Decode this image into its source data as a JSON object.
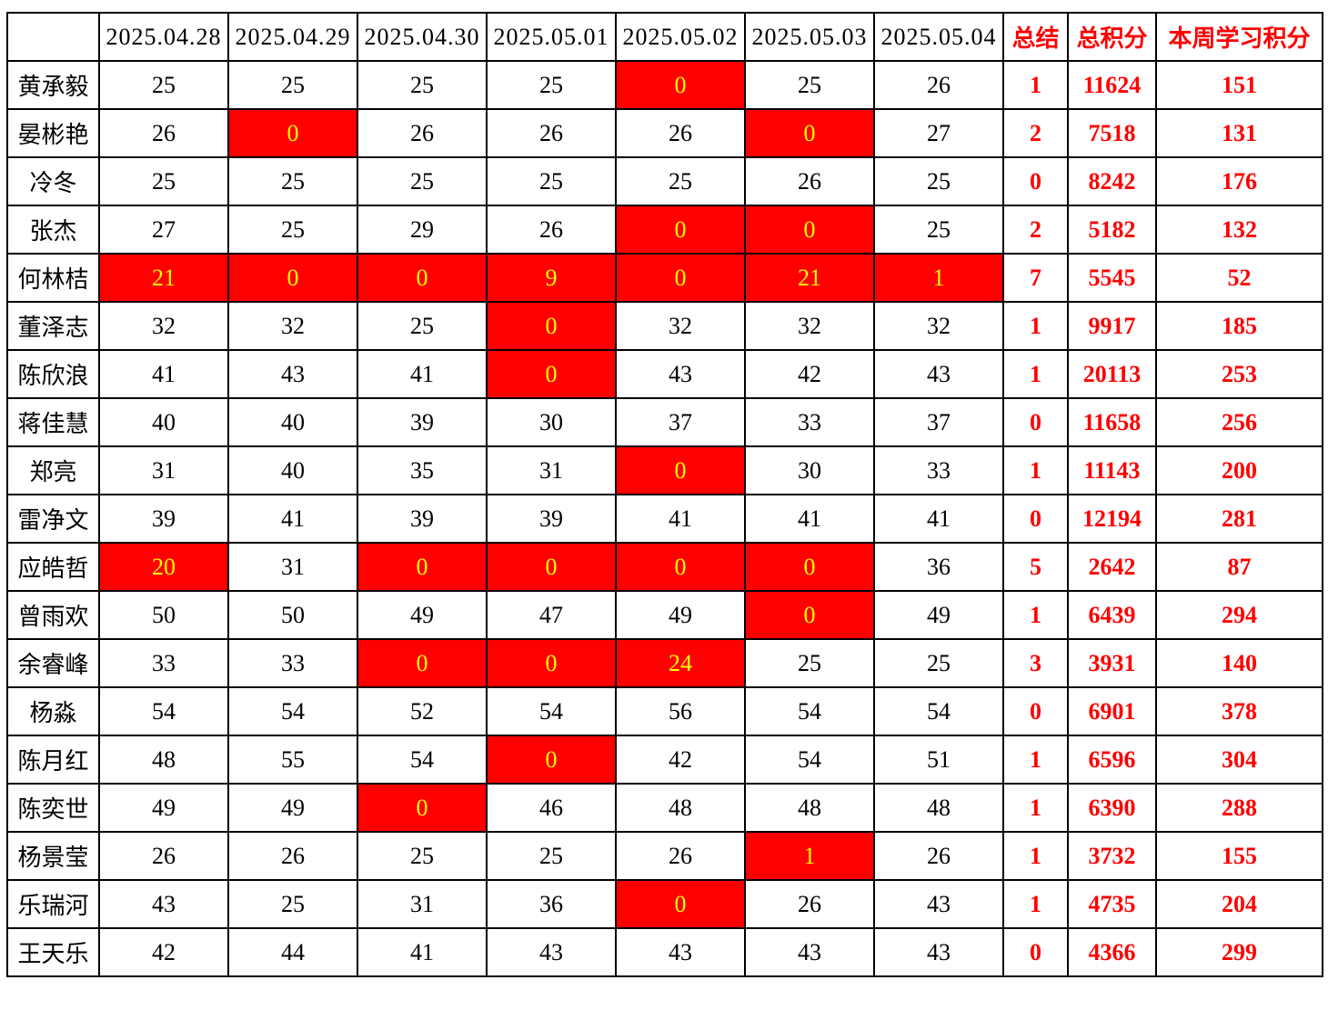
{
  "colors": {
    "highlight_bg": "#FF0000",
    "highlight_text": "#FFFF00",
    "accent_text": "#FF0000",
    "normal_text": "#000000",
    "border": "#000000",
    "background": "#FFFFFF"
  },
  "table": {
    "header": {
      "name_col": "",
      "date_cols": [
        "2025.04.28",
        "2025.04.29",
        "2025.04.30",
        "2025.05.01",
        "2025.05.02",
        "2025.05.03",
        "2025.05.04"
      ],
      "summary_cols": [
        "总结",
        "总积分",
        "本周学习积分"
      ]
    },
    "rows": [
      {
        "name": "黄承毅",
        "scores": [
          25,
          25,
          25,
          25,
          0,
          25,
          26
        ],
        "highlight": [
          4
        ],
        "summary": "1",
        "total": "11624",
        "week": "151"
      },
      {
        "name": "晏彬艳",
        "scores": [
          26,
          0,
          26,
          26,
          26,
          0,
          27
        ],
        "highlight": [
          1,
          5
        ],
        "summary": "2",
        "total": "7518",
        "week": "131"
      },
      {
        "name": "冷冬",
        "scores": [
          25,
          25,
          25,
          25,
          25,
          26,
          25
        ],
        "highlight": [],
        "summary": "0",
        "total": "8242",
        "week": "176"
      },
      {
        "name": "张杰",
        "scores": [
          27,
          25,
          29,
          26,
          0,
          0,
          25
        ],
        "highlight": [
          4,
          5
        ],
        "summary": "2",
        "total": "5182",
        "week": "132"
      },
      {
        "name": "何林桔",
        "scores": [
          21,
          0,
          0,
          9,
          0,
          21,
          1
        ],
        "highlight": [
          0,
          1,
          2,
          3,
          4,
          5,
          6
        ],
        "summary": "7",
        "total": "5545",
        "week": "52"
      },
      {
        "name": "董泽志",
        "scores": [
          32,
          32,
          25,
          0,
          32,
          32,
          32
        ],
        "highlight": [
          3
        ],
        "summary": "1",
        "total": "9917",
        "week": "185"
      },
      {
        "name": "陈欣浪",
        "scores": [
          41,
          43,
          41,
          0,
          43,
          42,
          43
        ],
        "highlight": [
          3
        ],
        "summary": "1",
        "total": "20113",
        "week": "253"
      },
      {
        "name": "蒋佳慧",
        "scores": [
          40,
          40,
          39,
          30,
          37,
          33,
          37
        ],
        "highlight": [],
        "summary": "0",
        "total": "11658",
        "week": "256"
      },
      {
        "name": "郑亮",
        "scores": [
          31,
          40,
          35,
          31,
          0,
          30,
          33
        ],
        "highlight": [
          4
        ],
        "summary": "1",
        "total": "11143",
        "week": "200"
      },
      {
        "name": "雷净文",
        "scores": [
          39,
          41,
          39,
          39,
          41,
          41,
          41
        ],
        "highlight": [],
        "summary": "0",
        "total": "12194",
        "week": "281"
      },
      {
        "name": "应皓哲",
        "scores": [
          20,
          31,
          0,
          0,
          0,
          0,
          36
        ],
        "highlight": [
          0,
          2,
          3,
          4,
          5
        ],
        "summary": "5",
        "total": "2642",
        "week": "87"
      },
      {
        "name": "曾雨欢",
        "scores": [
          50,
          50,
          49,
          47,
          49,
          0,
          49
        ],
        "highlight": [
          5
        ],
        "summary": "1",
        "total": "6439",
        "week": "294"
      },
      {
        "name": "余睿峰",
        "scores": [
          33,
          33,
          0,
          0,
          24,
          25,
          25
        ],
        "highlight": [
          2,
          3,
          4
        ],
        "summary": "3",
        "total": "3931",
        "week": "140"
      },
      {
        "name": "杨淼",
        "scores": [
          54,
          54,
          52,
          54,
          56,
          54,
          54
        ],
        "highlight": [],
        "summary": "0",
        "total": "6901",
        "week": "378"
      },
      {
        "name": "陈月红",
        "scores": [
          48,
          55,
          54,
          0,
          42,
          54,
          51
        ],
        "highlight": [
          3
        ],
        "summary": "1",
        "total": "6596",
        "week": "304"
      },
      {
        "name": "陈奕世",
        "scores": [
          49,
          49,
          0,
          46,
          48,
          48,
          48
        ],
        "highlight": [
          2
        ],
        "summary": "1",
        "total": "6390",
        "week": "288"
      },
      {
        "name": "杨景莹",
        "scores": [
          26,
          26,
          25,
          25,
          26,
          1,
          26
        ],
        "highlight": [
          5
        ],
        "summary": "1",
        "total": "3732",
        "week": "155"
      },
      {
        "name": "乐瑞河",
        "scores": [
          43,
          25,
          31,
          36,
          0,
          26,
          43
        ],
        "highlight": [
          4
        ],
        "summary": "1",
        "total": "4735",
        "week": "204"
      },
      {
        "name": "王天乐",
        "scores": [
          42,
          44,
          41,
          43,
          43,
          43,
          43
        ],
        "highlight": [],
        "summary": "0",
        "total": "4366",
        "week": "299"
      }
    ]
  }
}
